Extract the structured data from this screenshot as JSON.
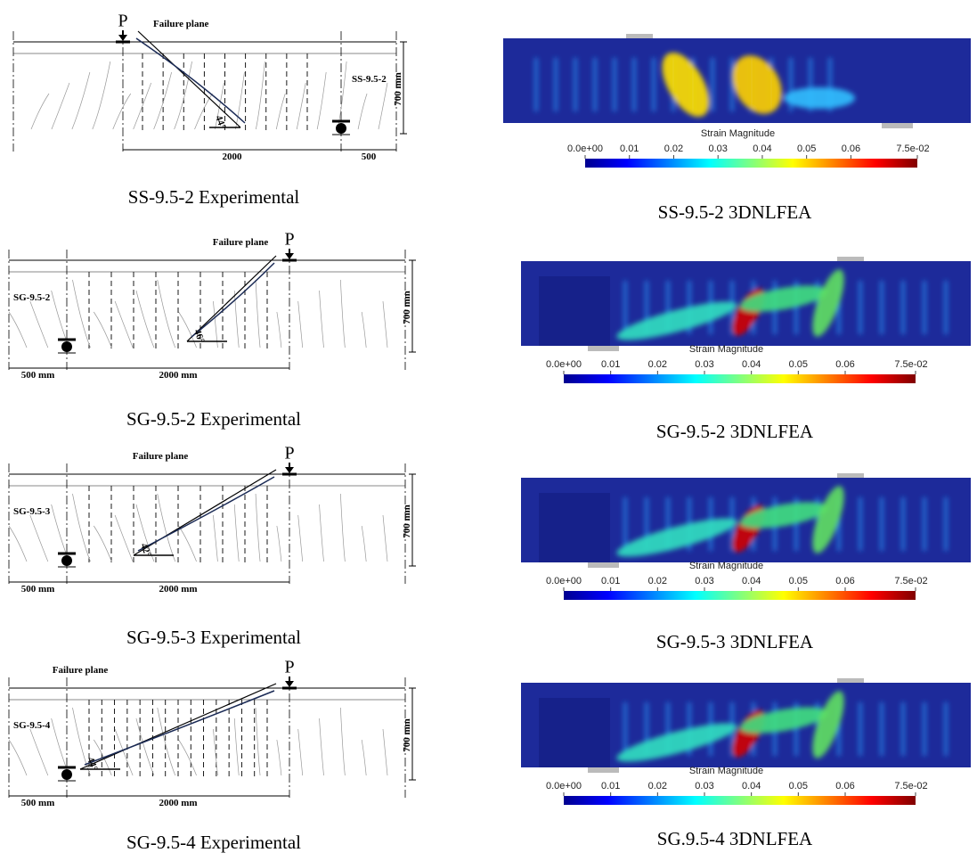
{
  "panels": [
    {
      "experimental": {
        "load": "P",
        "failure_plane": "Failure plane",
        "specimen": "SS-9.5-2",
        "height": "700 mm",
        "span": "2000",
        "overhang": "500",
        "angle": "44°",
        "caption": "SS-9.5-2 Experimental"
      },
      "fea": {
        "caption": "SS-9.5-2 3DNLFEA"
      }
    },
    {
      "experimental": {
        "load": "P",
        "failure_plane": "Failure plane",
        "specimen": "SG-9.5-2",
        "height": "700 mm",
        "span": "2000 mm",
        "overhang": "500 mm",
        "angle": "46°",
        "caption": "SG-9.5-2 Experimental"
      },
      "fea": {
        "caption": "SG-9.5-2 3DNLFEA"
      }
    },
    {
      "experimental": {
        "load": "P",
        "failure_plane": "Failure plane",
        "specimen": "SG-9.5-3",
        "height": "700 mm",
        "span": "2000 mm",
        "overhang": "500 mm",
        "angle": "42°",
        "caption": "SG-9.5-3 Experimental"
      },
      "fea": {
        "caption": "SG-9.5-3 3DNLFEA"
      }
    },
    {
      "experimental": {
        "load": "P",
        "failure_plane": "Failure plane",
        "specimen": "SG-9.5-4",
        "height": "700 mm",
        "span": "2000 mm",
        "overhang": "500 mm",
        "angle": "44°",
        "caption": "SG-9.5-4 Experimental"
      },
      "fea": {
        "caption": "SG.9.5-4 3DNLFEA"
      }
    }
  ],
  "colorbar": {
    "title": "Strain Magnitude",
    "ticks": [
      {
        "value": 0,
        "label": "0.0e+00"
      },
      0.01,
      0.02,
      0.03,
      0.04,
      0.05,
      0.06,
      {
        "value": 0.075,
        "label": "7.5e-02"
      }
    ]
  }
}
